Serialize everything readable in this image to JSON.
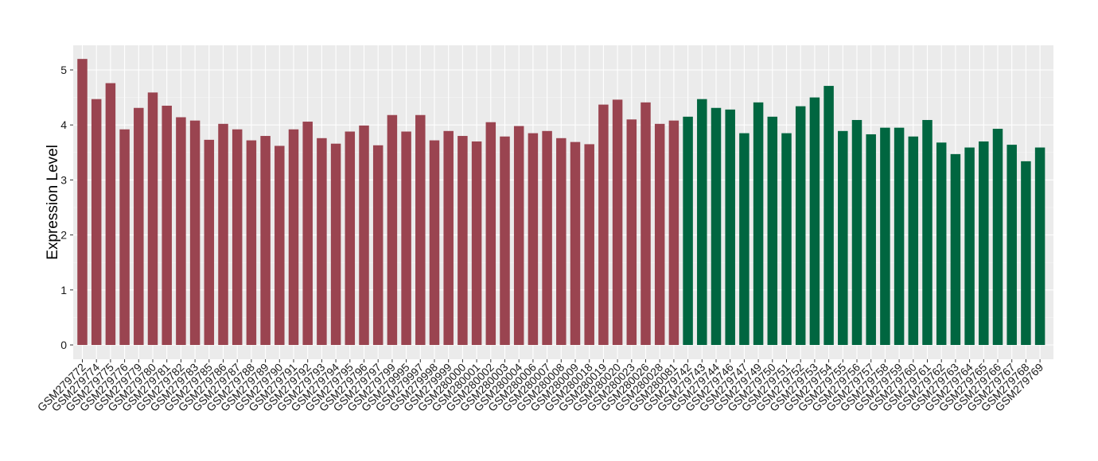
{
  "chart_data": {
    "type": "bar",
    "title": "",
    "xlabel": "",
    "ylabel": "Expression Level",
    "ylim": [
      0,
      5.45
    ],
    "yticks": [
      0,
      1,
      2,
      3,
      4,
      5
    ],
    "grid": true,
    "background": "#EBEBEB",
    "categories": [
      "GSM279772",
      "GSM279774",
      "GSM279775",
      "GSM279776",
      "GSM279779",
      "GSM279780",
      "GSM279781",
      "GSM279782",
      "GSM279783",
      "GSM279785",
      "GSM279786",
      "GSM279787",
      "GSM279788",
      "GSM279789",
      "GSM279790",
      "GSM279791",
      "GSM279792",
      "GSM279793",
      "GSM279794",
      "GSM279795",
      "GSM279796",
      "GSM279797",
      "GSM279799",
      "GSM279995",
      "GSM279997",
      "GSM279998",
      "GSM279999",
      "GSM280000",
      "GSM280001",
      "GSM280002",
      "GSM280003",
      "GSM280004",
      "GSM280006",
      "GSM280007",
      "GSM280008",
      "GSM280009",
      "GSM280018",
      "GSM280019",
      "GSM280020",
      "GSM280023",
      "GSM280026",
      "GSM280028",
      "GSM280081",
      "GSM279742",
      "GSM279743",
      "GSM279744",
      "GSM279746",
      "GSM279747",
      "GSM279749",
      "GSM279750",
      "GSM279751",
      "GSM279752",
      "GSM279753",
      "GSM279754",
      "GSM279755",
      "GSM279756",
      "GSM279757",
      "GSM279758",
      "GSM279759",
      "GSM279760",
      "GSM279761",
      "GSM279762",
      "GSM279763",
      "GSM279764",
      "GSM279765",
      "GSM279766",
      "GSM279767",
      "GSM279768",
      "GSM279769"
    ],
    "values": [
      5.2,
      4.47,
      4.76,
      3.92,
      4.31,
      4.59,
      4.35,
      4.14,
      4.08,
      3.73,
      4.02,
      3.92,
      3.72,
      3.8,
      3.62,
      3.92,
      4.06,
      3.76,
      3.66,
      3.88,
      3.99,
      3.63,
      4.18,
      3.88,
      4.18,
      3.72,
      3.89,
      3.8,
      3.7,
      4.05,
      3.79,
      3.98,
      3.85,
      3.89,
      3.76,
      3.69,
      3.65,
      4.37,
      4.46,
      4.1,
      4.41,
      4.02,
      4.08,
      4.15,
      4.47,
      4.31,
      4.28,
      3.85,
      4.41,
      4.15,
      3.85,
      4.34,
      4.5,
      4.71,
      3.89,
      4.09,
      3.83,
      3.95,
      3.95,
      3.79,
      4.09,
      3.68,
      3.47,
      3.59,
      3.7,
      3.93,
      3.64,
      3.34,
      3.59
    ],
    "groups": [
      {
        "color": "#9A4450",
        "count": 43
      },
      {
        "color": "#006640",
        "count": 26
      }
    ]
  }
}
